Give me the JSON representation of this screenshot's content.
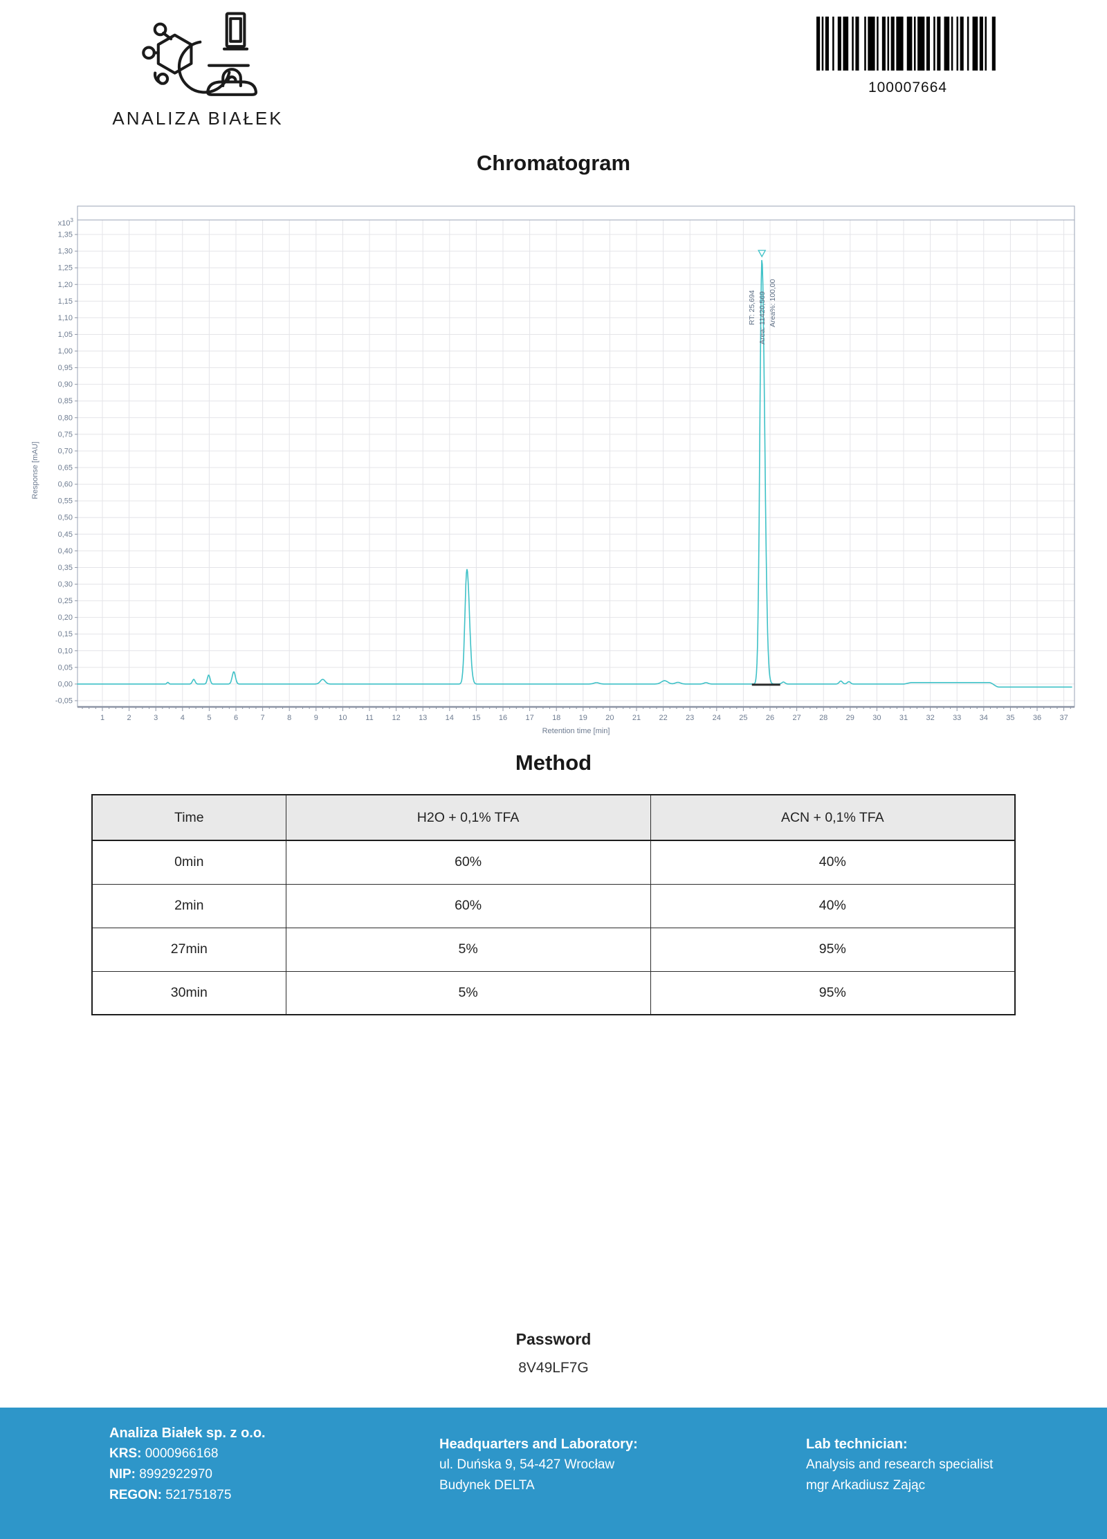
{
  "header": {
    "logo_text": "ANALIZA BIAŁEK",
    "barcode_number": "100007664"
  },
  "chromatogram": {
    "title": "Chromatogram",
    "annotation": {
      "rt_label": "RT: 25,694",
      "area_label": "Area: 11420,569",
      "area_pct_label": "Area%: 100,00"
    }
  },
  "chart_data": {
    "type": "line",
    "title": "Chromatogram",
    "xlabel": "Retention time [min]",
    "ylabel": "Response [mAU]",
    "y_multiplier_base": "x10",
    "y_multiplier_exp": "3",
    "xlim": [
      0,
      37.4
    ],
    "ylim": [
      -0.05,
      1.35
    ],
    "grid": true,
    "line_color": "#3ec1c7",
    "x_ticks": [
      1,
      2,
      3,
      4,
      5,
      6,
      7,
      8,
      9,
      10,
      11,
      12,
      13,
      14,
      15,
      16,
      17,
      18,
      19,
      20,
      21,
      22,
      23,
      24,
      25,
      26,
      27,
      28,
      29,
      30,
      31,
      32,
      33,
      34,
      35,
      36,
      37
    ],
    "y_ticks": [
      1.35,
      1.3,
      1.25,
      1.2,
      1.15,
      1.1,
      1.05,
      1.0,
      0.95,
      0.9,
      0.85,
      0.8,
      0.75,
      0.7,
      0.65,
      0.6,
      0.55,
      0.5,
      0.45,
      0.4,
      0.35,
      0.3,
      0.25,
      0.2,
      0.15,
      0.1,
      0.05,
      0.0,
      -0.05
    ],
    "baseline_value": 0.0,
    "peaks": [
      {
        "rt": 3.45,
        "height": 0.005,
        "sigma": 0.035
      },
      {
        "rt": 4.42,
        "height": 0.014,
        "sigma": 0.05
      },
      {
        "rt": 4.98,
        "height": 0.027,
        "sigma": 0.05
      },
      {
        "rt": 5.92,
        "height": 0.037,
        "sigma": 0.06
      },
      {
        "rt": 9.25,
        "height": 0.014,
        "sigma": 0.09
      },
      {
        "rt": 14.65,
        "height": 0.345,
        "sigma": 0.075,
        "sigma_r": 0.095
      },
      {
        "rt": 19.5,
        "height": 0.004,
        "sigma": 0.1
      },
      {
        "rt": 22.05,
        "height": 0.01,
        "sigma": 0.12
      },
      {
        "rt": 22.55,
        "height": 0.005,
        "sigma": 0.1
      },
      {
        "rt": 23.6,
        "height": 0.004,
        "sigma": 0.08
      },
      {
        "rt": 25.694,
        "height": 1.275,
        "sigma": 0.075,
        "sigma_r": 0.105
      },
      {
        "rt": 26.5,
        "height": 0.006,
        "sigma": 0.06
      },
      {
        "rt": 28.65,
        "height": 0.009,
        "sigma": 0.06
      },
      {
        "rt": 28.95,
        "height": 0.007,
        "sigma": 0.06
      }
    ],
    "baseline_segments": [
      {
        "from": 31.15,
        "to": 34.35,
        "offset": 0.0045
      },
      {
        "from": 34.4,
        "to": 37.6,
        "offset": -0.009
      }
    ],
    "integration_baseline": {
      "from": 25.32,
      "to": 26.38
    },
    "main_peak": {
      "rt": 25.694,
      "area": 11420.569,
      "area_percent": 100.0,
      "height": 1.275
    }
  },
  "method": {
    "title": "Method",
    "table": {
      "headers": [
        "Time",
        "H2O + 0,1% TFA",
        "ACN + 0,1% TFA"
      ],
      "rows": [
        [
          "0min",
          "60%",
          "40%"
        ],
        [
          "2min",
          "60%",
          "40%"
        ],
        [
          "27min",
          "5%",
          "95%"
        ],
        [
          "30min",
          "5%",
          "95%"
        ]
      ]
    }
  },
  "password": {
    "label": "Password",
    "value": "8V49LF7G"
  },
  "footer": {
    "company": {
      "name": "Analiza Białek sp. z o.o.",
      "krs_label": "KRS:",
      "krs": "0000966168",
      "nip_label": "NIP:",
      "nip": "8992922970",
      "regon_label": "REGON:",
      "regon": "521751875"
    },
    "hq": {
      "title": "Headquarters and Laboratory:",
      "line1": "ul. Duńska 9, 54-427 Wrocław",
      "line2": "Budynek DELTA"
    },
    "technician": {
      "title": "Lab technician:",
      "line1": "Analysis and research specialist",
      "line2": "mgr Arkadiusz Zając"
    }
  },
  "colors": {
    "footer_bg": "#2e96c9",
    "trace": "#3ec1c7",
    "table_header_bg": "#e9e9e9",
    "grid": "#e4e4e8"
  }
}
